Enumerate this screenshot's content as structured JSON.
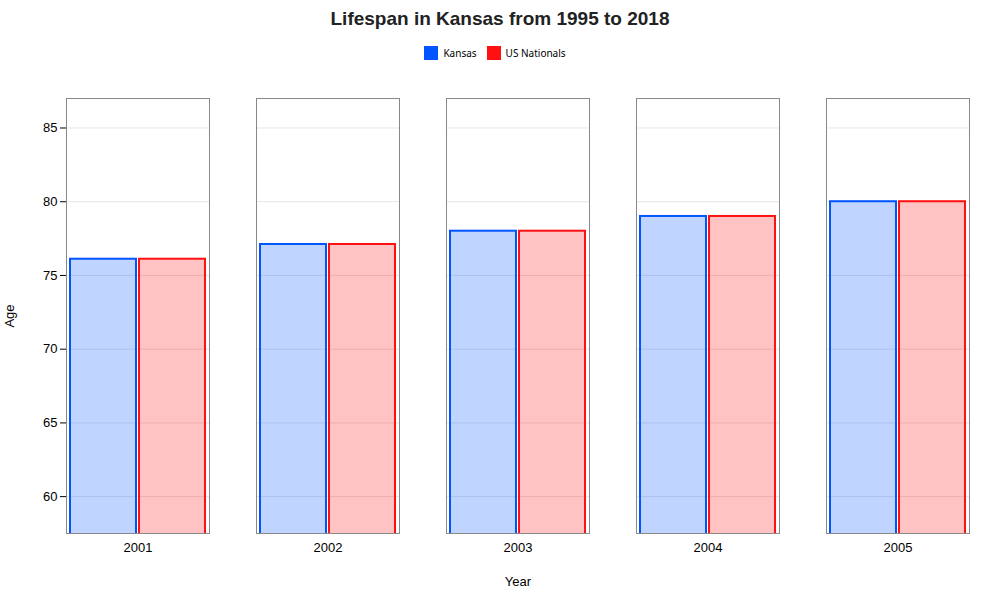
{
  "chart_data": {
    "type": "bar",
    "title": "Lifespan in Kansas from 1995 to 2018",
    "xlabel": "Year",
    "ylabel": "Age",
    "categories": [
      "2001",
      "2002",
      "2003",
      "2004",
      "2005"
    ],
    "series": [
      {
        "name": "Kansas",
        "color": "#0055ff",
        "values": [
          76.1,
          77.1,
          78.0,
          79.0,
          80.0
        ]
      },
      {
        "name": "US Nationals",
        "color": "#ff1111",
        "values": [
          76.1,
          77.1,
          78.0,
          79.0,
          80.0
        ]
      }
    ],
    "ylim": [
      57.5,
      87
    ],
    "yticks": [
      60,
      65,
      70,
      75,
      80,
      85
    ],
    "grid": true,
    "legend": "top"
  }
}
